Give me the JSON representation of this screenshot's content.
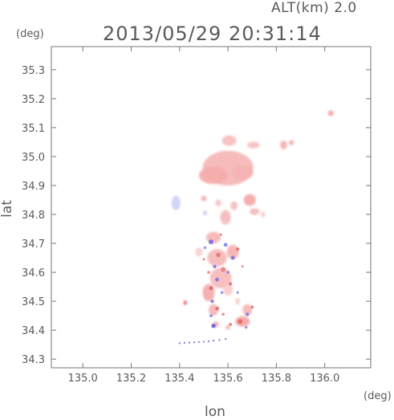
{
  "chart_data": {
    "type": "heatmap",
    "title": "2013/05/29 20:31:14",
    "subtitle": "ALT(km) 2.0",
    "xlabel": "lon",
    "ylabel": "lat",
    "x_unit": "(deg)",
    "y_unit": "(deg)",
    "xlim": [
      134.87,
      136.19
    ],
    "ylim": [
      34.27,
      35.38
    ],
    "xticks": [
      135.0,
      135.2,
      135.4,
      135.6,
      135.8,
      136.0
    ],
    "xtick_labels": [
      "135.0",
      "135.2",
      "135.4",
      "135.6",
      "135.8",
      "136.0"
    ],
    "yticks": [
      34.3,
      34.4,
      34.5,
      34.6,
      34.7,
      34.8,
      34.9,
      35.0,
      35.1,
      35.2,
      35.3
    ],
    "ytick_labels": [
      "34.3",
      "34.4",
      "34.5",
      "34.6",
      "34.7",
      "34.8",
      "34.9",
      "35.0",
      "35.1",
      "35.2",
      "35.3"
    ],
    "grid": false,
    "colors": {
      "positive": "#f4a0a0",
      "negative": "#8a8ae6",
      "axis": "#777777"
    },
    "blobs": [
      {
        "lon": 135.6,
        "lat": 34.96,
        "rlon": 0.105,
        "rlat": 0.06,
        "color": "#f7b7b7"
      },
      {
        "lon": 135.54,
        "lat": 34.935,
        "rlon": 0.06,
        "rlat": 0.03,
        "color": "#f6adad"
      },
      {
        "lon": 135.66,
        "lat": 34.945,
        "rlon": 0.045,
        "rlat": 0.025,
        "color": "#f7b3b3"
      },
      {
        "lon": 135.605,
        "lat": 35.055,
        "rlon": 0.03,
        "rlat": 0.018,
        "color": "#f8c0c0"
      },
      {
        "lon": 135.705,
        "lat": 35.04,
        "rlon": 0.025,
        "rlat": 0.012,
        "color": "#f8c2c2"
      },
      {
        "lon": 135.83,
        "lat": 35.04,
        "rlon": 0.014,
        "rlat": 0.015,
        "color": "#f5b0b0"
      },
      {
        "lon": 135.862,
        "lat": 35.048,
        "rlon": 0.01,
        "rlat": 0.008,
        "color": "#f3a7a7"
      },
      {
        "lon": 136.025,
        "lat": 35.15,
        "rlon": 0.012,
        "rlat": 0.01,
        "color": "#f3aaaa"
      },
      {
        "lon": 135.69,
        "lat": 34.85,
        "rlon": 0.025,
        "rlat": 0.02,
        "color": "#f4a9a9"
      },
      {
        "lon": 135.71,
        "lat": 34.81,
        "rlon": 0.02,
        "rlat": 0.012,
        "color": "#f7bdbd"
      },
      {
        "lon": 135.745,
        "lat": 34.8,
        "rlon": 0.01,
        "rlat": 0.01,
        "color": "#f9d0d0"
      },
      {
        "lon": 135.385,
        "lat": 34.84,
        "rlon": 0.018,
        "rlat": 0.025,
        "color": "#cdd4f4"
      },
      {
        "lon": 135.5,
        "lat": 34.855,
        "rlon": 0.012,
        "rlat": 0.01,
        "color": "#f6b6b6"
      },
      {
        "lon": 135.56,
        "lat": 34.84,
        "rlon": 0.012,
        "rlat": 0.012,
        "color": "#f8c4c4"
      },
      {
        "lon": 135.59,
        "lat": 34.79,
        "rlon": 0.022,
        "rlat": 0.025,
        "color": "#f6bcbc"
      },
      {
        "lon": 135.625,
        "lat": 34.83,
        "rlon": 0.015,
        "rlat": 0.015,
        "color": "#f7c0c0"
      },
      {
        "lon": 135.505,
        "lat": 34.805,
        "rlon": 0.008,
        "rlat": 0.008,
        "color": "#c9cdf2"
      },
      {
        "lon": 135.54,
        "lat": 34.72,
        "rlon": 0.03,
        "rlat": 0.02,
        "color": "#f6b6b6"
      },
      {
        "lon": 135.555,
        "lat": 34.65,
        "rlon": 0.04,
        "rlat": 0.03,
        "color": "#f6b9b9"
      },
      {
        "lon": 135.62,
        "lat": 34.67,
        "rlon": 0.025,
        "rlat": 0.025,
        "color": "#f5b2b2"
      },
      {
        "lon": 135.48,
        "lat": 34.67,
        "rlon": 0.015,
        "rlat": 0.015,
        "color": "#f9d0d0"
      },
      {
        "lon": 135.57,
        "lat": 34.58,
        "rlon": 0.045,
        "rlat": 0.035,
        "color": "#f7bcbc"
      },
      {
        "lon": 135.52,
        "lat": 34.53,
        "rlon": 0.025,
        "rlat": 0.03,
        "color": "#f4adad"
      },
      {
        "lon": 135.54,
        "lat": 34.47,
        "rlon": 0.02,
        "rlat": 0.02,
        "color": "#f5b5b5"
      },
      {
        "lon": 135.6,
        "lat": 34.54,
        "rlon": 0.02,
        "rlat": 0.02,
        "color": "#f9cccc"
      },
      {
        "lon": 135.64,
        "lat": 34.5,
        "rlon": 0.01,
        "rlat": 0.012,
        "color": "#f9d2d2"
      },
      {
        "lon": 135.68,
        "lat": 34.47,
        "rlon": 0.02,
        "rlat": 0.02,
        "color": "#f6b8b8"
      },
      {
        "lon": 135.66,
        "lat": 34.43,
        "rlon": 0.03,
        "rlat": 0.018,
        "color": "#f4a8a8"
      },
      {
        "lon": 135.6,
        "lat": 34.41,
        "rlon": 0.01,
        "rlat": 0.008,
        "color": "#f6b8b8"
      },
      {
        "lon": 135.55,
        "lat": 34.42,
        "rlon": 0.012,
        "rlat": 0.01,
        "color": "#f4acac"
      },
      {
        "lon": 135.423,
        "lat": 34.495,
        "rlon": 0.006,
        "rlat": 0.008,
        "color": "#e05a5a"
      }
    ],
    "speckle": [
      {
        "lon": 135.53,
        "lat": 34.705,
        "r": 0.01,
        "color": "#7070e0"
      },
      {
        "lon": 135.59,
        "lat": 34.695,
        "r": 0.008,
        "color": "#7a7ae4"
      },
      {
        "lon": 135.505,
        "lat": 34.685,
        "r": 0.006,
        "color": "#9090e8"
      },
      {
        "lon": 135.56,
        "lat": 34.66,
        "r": 0.009,
        "color": "#e87070"
      },
      {
        "lon": 135.62,
        "lat": 34.65,
        "r": 0.008,
        "color": "#6c6cdc"
      },
      {
        "lon": 135.64,
        "lat": 34.68,
        "r": 0.007,
        "color": "#e06868"
      },
      {
        "lon": 135.545,
        "lat": 34.62,
        "r": 0.007,
        "color": "#7070de"
      },
      {
        "lon": 135.58,
        "lat": 34.61,
        "r": 0.01,
        "color": "#e87a7a"
      },
      {
        "lon": 135.6,
        "lat": 34.6,
        "r": 0.006,
        "color": "#8080e4"
      },
      {
        "lon": 135.52,
        "lat": 34.6,
        "r": 0.006,
        "color": "#ea7c7c"
      },
      {
        "lon": 135.555,
        "lat": 34.575,
        "r": 0.008,
        "color": "#7676e0"
      },
      {
        "lon": 135.61,
        "lat": 34.56,
        "r": 0.007,
        "color": "#e46c6c"
      },
      {
        "lon": 135.53,
        "lat": 34.545,
        "r": 0.008,
        "color": "#d86060"
      },
      {
        "lon": 135.575,
        "lat": 34.53,
        "r": 0.006,
        "color": "#8686e6"
      },
      {
        "lon": 135.535,
        "lat": 34.5,
        "r": 0.007,
        "color": "#7272de"
      },
      {
        "lon": 135.555,
        "lat": 34.475,
        "r": 0.008,
        "color": "#e26a6a"
      },
      {
        "lon": 135.53,
        "lat": 34.45,
        "r": 0.006,
        "color": "#7a7ae2"
      },
      {
        "lon": 135.58,
        "lat": 34.455,
        "r": 0.006,
        "color": "#ec8484"
      },
      {
        "lon": 135.54,
        "lat": 34.415,
        "r": 0.009,
        "color": "#5a5ad8"
      },
      {
        "lon": 135.61,
        "lat": 34.42,
        "r": 0.006,
        "color": "#de6262"
      },
      {
        "lon": 135.65,
        "lat": 34.43,
        "r": 0.01,
        "color": "#e86262"
      },
      {
        "lon": 135.68,
        "lat": 34.455,
        "r": 0.007,
        "color": "#7878e2"
      },
      {
        "lon": 135.7,
        "lat": 34.48,
        "r": 0.006,
        "color": "#e06868"
      },
      {
        "lon": 135.675,
        "lat": 34.41,
        "r": 0.006,
        "color": "#8c8ce8"
      },
      {
        "lon": 135.64,
        "lat": 34.53,
        "r": 0.005,
        "color": "#7474e0"
      },
      {
        "lon": 135.5,
        "lat": 34.645,
        "r": 0.005,
        "color": "#e67474"
      },
      {
        "lon": 135.66,
        "lat": 34.62,
        "r": 0.005,
        "color": "#f07a7a"
      },
      {
        "lon": 135.57,
        "lat": 34.73,
        "r": 0.005,
        "color": "#e27070"
      }
    ],
    "dots": [
      {
        "lon": 135.4,
        "lat": 34.355
      },
      {
        "lon": 135.42,
        "lat": 34.356
      },
      {
        "lon": 135.44,
        "lat": 34.357
      },
      {
        "lon": 135.46,
        "lat": 34.358
      },
      {
        "lon": 135.48,
        "lat": 34.359
      },
      {
        "lon": 135.5,
        "lat": 34.36
      },
      {
        "lon": 135.52,
        "lat": 34.362
      },
      {
        "lon": 135.54,
        "lat": 34.364
      },
      {
        "lon": 135.565,
        "lat": 34.366
      },
      {
        "lon": 135.59,
        "lat": 34.37
      }
    ]
  },
  "labels": {
    "alt": "ALT(km) 2.0",
    "title": "2013/05/29 20:31:14",
    "lat_unit": "(deg)",
    "lon_unit": "(deg)",
    "xlabel": "lon",
    "ylabel": "lat"
  }
}
